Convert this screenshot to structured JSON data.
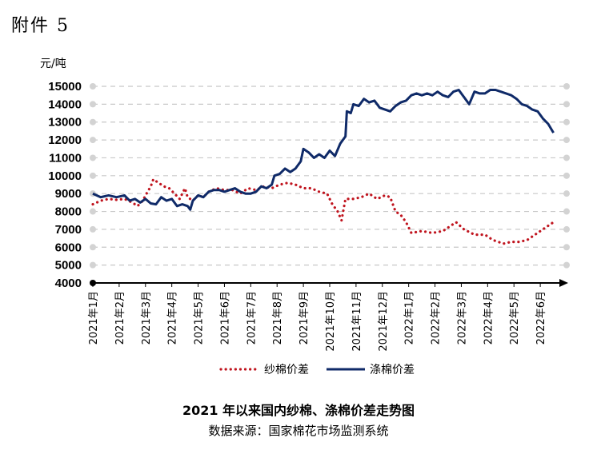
{
  "page": {
    "attachment_label": "附件 5",
    "title": "2021 年以来国内纱棉、涤棉价差走势图",
    "source": "数据来源：国家棉花市场监测系统"
  },
  "chart_data": {
    "type": "line",
    "ylabel": "元/吨",
    "xlabel": "",
    "ylim": [
      4000,
      15000
    ],
    "yticks": [
      4000,
      5000,
      6000,
      7000,
      8000,
      9000,
      10000,
      11000,
      12000,
      13000,
      14000,
      15000
    ],
    "grid": true,
    "legend_position": "bottom",
    "categories": [
      "2021年1月",
      "2021年2月",
      "2021年3月",
      "2021年4月",
      "2021年5月",
      "2021年6月",
      "2021年7月",
      "2021年8月",
      "2021年9月",
      "2021年10月",
      "2021年11月",
      "2021年12月",
      "2022年1月",
      "2022年2月",
      "2022年3月",
      "2022年4月",
      "2022年5月",
      "2022年6月"
    ],
    "series": [
      {
        "name": "纱棉价差",
        "style": "dotted",
        "color": "#c0141e",
        "points": [
          [
            0,
            8400
          ],
          [
            0.3,
            8600
          ],
          [
            0.6,
            8700
          ],
          [
            0.9,
            8650
          ],
          [
            1.2,
            8700
          ],
          [
            1.5,
            8500
          ],
          [
            1.7,
            8300
          ],
          [
            1.9,
            8600
          ],
          [
            2.0,
            8900
          ],
          [
            2.2,
            9400
          ],
          [
            2.3,
            9800
          ],
          [
            2.5,
            9600
          ],
          [
            2.7,
            9400
          ],
          [
            2.9,
            9300
          ],
          [
            3.1,
            9000
          ],
          [
            3.3,
            8700
          ],
          [
            3.5,
            9300
          ],
          [
            3.6,
            8800
          ],
          [
            3.8,
            8600
          ],
          [
            4.0,
            8900
          ],
          [
            4.2,
            8800
          ],
          [
            4.4,
            9100
          ],
          [
            4.7,
            9300
          ],
          [
            5.0,
            9200
          ],
          [
            5.3,
            9200
          ],
          [
            5.6,
            9000
          ],
          [
            5.9,
            9300
          ],
          [
            6.2,
            9200
          ],
          [
            6.5,
            9400
          ],
          [
            6.8,
            9300
          ],
          [
            7.1,
            9500
          ],
          [
            7.4,
            9600
          ],
          [
            7.7,
            9500
          ],
          [
            8.0,
            9300
          ],
          [
            8.3,
            9300
          ],
          [
            8.6,
            9100
          ],
          [
            8.9,
            9000
          ],
          [
            9.1,
            8400
          ],
          [
            9.3,
            8000
          ],
          [
            9.45,
            7500
          ],
          [
            9.6,
            8700
          ],
          [
            9.9,
            8700
          ],
          [
            10.2,
            8800
          ],
          [
            10.5,
            9000
          ],
          [
            10.8,
            8700
          ],
          [
            11.1,
            8900
          ],
          [
            11.3,
            8800
          ],
          [
            11.5,
            8000
          ],
          [
            11.7,
            7800
          ],
          [
            11.9,
            7400
          ],
          [
            12.1,
            6800
          ],
          [
            12.5,
            6900
          ],
          [
            12.9,
            6800
          ],
          [
            13.3,
            6900
          ],
          [
            13.6,
            7200
          ],
          [
            13.8,
            7400
          ],
          [
            14.1,
            7000
          ],
          [
            14.5,
            6700
          ],
          [
            14.9,
            6700
          ],
          [
            15.2,
            6400
          ],
          [
            15.6,
            6200
          ],
          [
            15.9,
            6300
          ],
          [
            16.2,
            6300
          ],
          [
            16.5,
            6400
          ],
          [
            16.8,
            6700
          ],
          [
            17.1,
            7000
          ],
          [
            17.5,
            7400
          ]
        ]
      },
      {
        "name": "涤棉价差",
        "style": "solid",
        "color": "#0f2a68",
        "points": [
          [
            0,
            9000
          ],
          [
            0.3,
            8800
          ],
          [
            0.6,
            8900
          ],
          [
            0.9,
            8800
          ],
          [
            1.2,
            8900
          ],
          [
            1.4,
            8600
          ],
          [
            1.6,
            8700
          ],
          [
            1.8,
            8500
          ],
          [
            2.0,
            8700
          ],
          [
            2.2,
            8450
          ],
          [
            2.4,
            8400
          ],
          [
            2.6,
            8800
          ],
          [
            2.8,
            8600
          ],
          [
            3.0,
            8700
          ],
          [
            3.2,
            8300
          ],
          [
            3.4,
            8400
          ],
          [
            3.6,
            8300
          ],
          [
            3.7,
            8100
          ],
          [
            3.8,
            8600
          ],
          [
            4.0,
            8900
          ],
          [
            4.2,
            8800
          ],
          [
            4.4,
            9100
          ],
          [
            4.6,
            9200
          ],
          [
            4.8,
            9200
          ],
          [
            5.0,
            9100
          ],
          [
            5.2,
            9200
          ],
          [
            5.4,
            9300
          ],
          [
            5.6,
            9100
          ],
          [
            5.8,
            9000
          ],
          [
            6.0,
            9000
          ],
          [
            6.2,
            9100
          ],
          [
            6.4,
            9400
          ],
          [
            6.6,
            9300
          ],
          [
            6.8,
            9500
          ],
          [
            6.9,
            10000
          ],
          [
            7.1,
            10100
          ],
          [
            7.3,
            10400
          ],
          [
            7.5,
            10200
          ],
          [
            7.7,
            10400
          ],
          [
            7.9,
            10800
          ],
          [
            8.0,
            11500
          ],
          [
            8.2,
            11300
          ],
          [
            8.4,
            11000
          ],
          [
            8.6,
            11200
          ],
          [
            8.8,
            11000
          ],
          [
            9.0,
            11400
          ],
          [
            9.2,
            11100
          ],
          [
            9.4,
            11800
          ],
          [
            9.6,
            12200
          ],
          [
            9.65,
            13600
          ],
          [
            9.8,
            13500
          ],
          [
            9.9,
            14000
          ],
          [
            10.1,
            13900
          ],
          [
            10.3,
            14300
          ],
          [
            10.5,
            14100
          ],
          [
            10.7,
            14200
          ],
          [
            10.9,
            13800
          ],
          [
            11.1,
            13700
          ],
          [
            11.3,
            13600
          ],
          [
            11.5,
            13900
          ],
          [
            11.7,
            14100
          ],
          [
            11.9,
            14200
          ],
          [
            12.1,
            14500
          ],
          [
            12.3,
            14600
          ],
          [
            12.5,
            14500
          ],
          [
            12.7,
            14600
          ],
          [
            12.9,
            14500
          ],
          [
            13.1,
            14700
          ],
          [
            13.3,
            14500
          ],
          [
            13.5,
            14400
          ],
          [
            13.7,
            14700
          ],
          [
            13.9,
            14800
          ],
          [
            14.1,
            14400
          ],
          [
            14.3,
            14000
          ],
          [
            14.5,
            14700
          ],
          [
            14.7,
            14600
          ],
          [
            14.9,
            14600
          ],
          [
            15.1,
            14800
          ],
          [
            15.3,
            14800
          ],
          [
            15.5,
            14700
          ],
          [
            15.7,
            14600
          ],
          [
            15.9,
            14500
          ],
          [
            16.1,
            14300
          ],
          [
            16.3,
            14000
          ],
          [
            16.5,
            13900
          ],
          [
            16.7,
            13700
          ],
          [
            16.9,
            13600
          ],
          [
            17.1,
            13200
          ],
          [
            17.3,
            12900
          ],
          [
            17.5,
            12400
          ]
        ]
      }
    ]
  }
}
